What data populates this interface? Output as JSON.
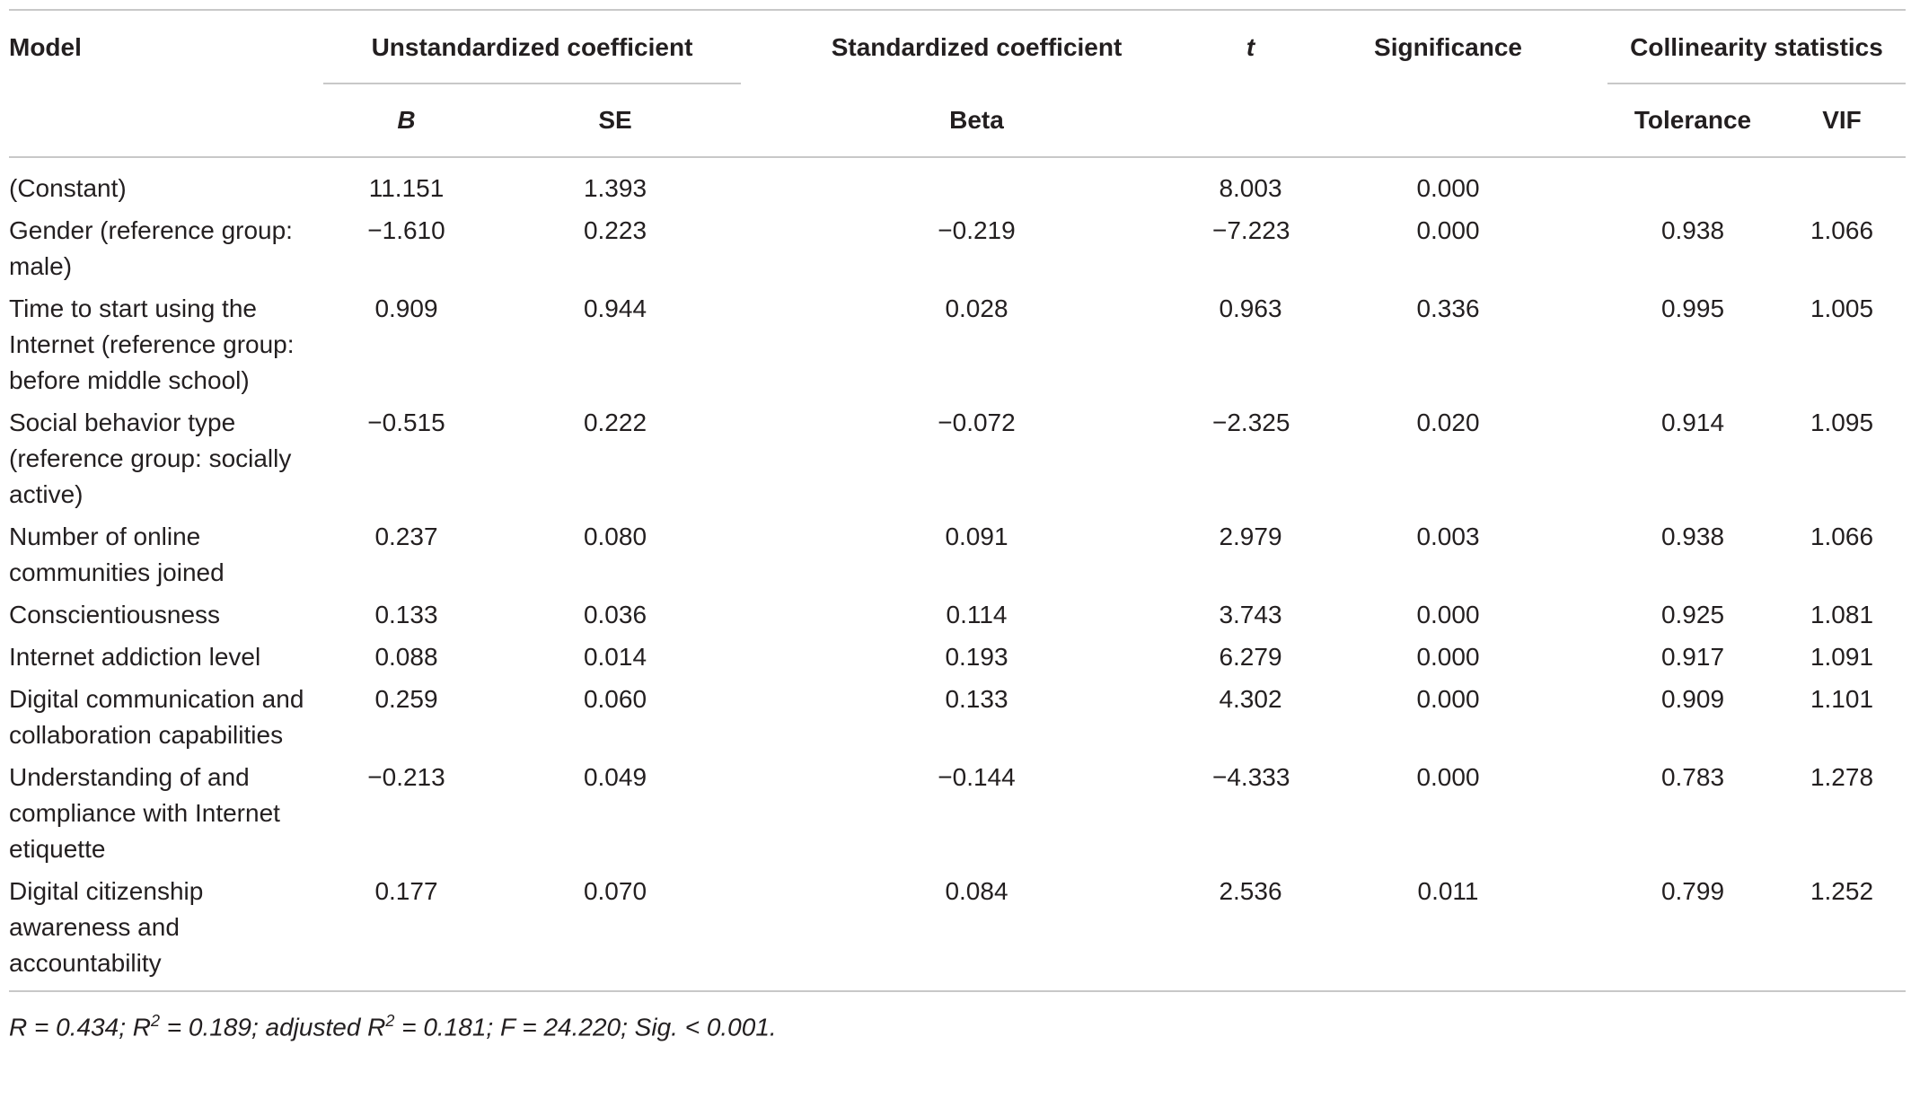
{
  "headers": {
    "model": "Model",
    "unstd": "Unstandardized coefficient",
    "std": "Standardized coefficient",
    "t": "t",
    "sig": "Significance",
    "coll": "Collinearity statistics",
    "b": "B",
    "se": "SE",
    "beta": "Beta",
    "tol": "Tolerance",
    "vif": "VIF"
  },
  "rows": [
    {
      "model": "(Constant)",
      "b": "11.151",
      "se": "1.393",
      "beta": "",
      "t": "8.003",
      "sig": "0.000",
      "tol": "",
      "vif": ""
    },
    {
      "model": "Gender (reference group: male)",
      "b": "−1.610",
      "se": "0.223",
      "beta": "−0.219",
      "t": "−7.223",
      "sig": "0.000",
      "tol": "0.938",
      "vif": "1.066"
    },
    {
      "model": "Time to start using the Internet (reference group: before middle school)",
      "b": "0.909",
      "se": "0.944",
      "beta": "0.028",
      "t": "0.963",
      "sig": "0.336",
      "tol": "0.995",
      "vif": "1.005"
    },
    {
      "model": "Social behavior type (reference group: socially active)",
      "b": "−0.515",
      "se": "0.222",
      "beta": "−0.072",
      "t": "−2.325",
      "sig": "0.020",
      "tol": "0.914",
      "vif": "1.095"
    },
    {
      "model": "Number of online communities joined",
      "b": "0.237",
      "se": "0.080",
      "beta": "0.091",
      "t": "2.979",
      "sig": "0.003",
      "tol": "0.938",
      "vif": "1.066"
    },
    {
      "model": "Conscientiousness",
      "b": "0.133",
      "se": "0.036",
      "beta": "0.114",
      "t": "3.743",
      "sig": "0.000",
      "tol": "0.925",
      "vif": "1.081"
    },
    {
      "model": "Internet addiction level",
      "b": "0.088",
      "se": "0.014",
      "beta": "0.193",
      "t": "6.279",
      "sig": "0.000",
      "tol": "0.917",
      "vif": "1.091"
    },
    {
      "model": "Digital communication and collaboration capabilities",
      "b": "0.259",
      "se": "0.060",
      "beta": "0.133",
      "t": "4.302",
      "sig": "0.000",
      "tol": "0.909",
      "vif": "1.101"
    },
    {
      "model": "Understanding of and compliance with Internet etiquette",
      "b": "−0.213",
      "se": "0.049",
      "beta": "−0.144",
      "t": "−4.333",
      "sig": "0.000",
      "tol": "0.783",
      "vif": "1.278"
    },
    {
      "model": "Digital citizenship awareness and accountability",
      "b": "0.177",
      "se": "0.070",
      "beta": "0.084",
      "t": "2.536",
      "sig": "0.011",
      "tol": "0.799",
      "vif": "1.252"
    }
  ],
  "footnote": {
    "r": "R = 0.434; R",
    "r2_sup": "2",
    "r2_val": " = 0.189; adjusted R",
    "adj_sup": "2",
    "rest": " = 0.181; F = 24.220; Sig. < 0.001."
  }
}
